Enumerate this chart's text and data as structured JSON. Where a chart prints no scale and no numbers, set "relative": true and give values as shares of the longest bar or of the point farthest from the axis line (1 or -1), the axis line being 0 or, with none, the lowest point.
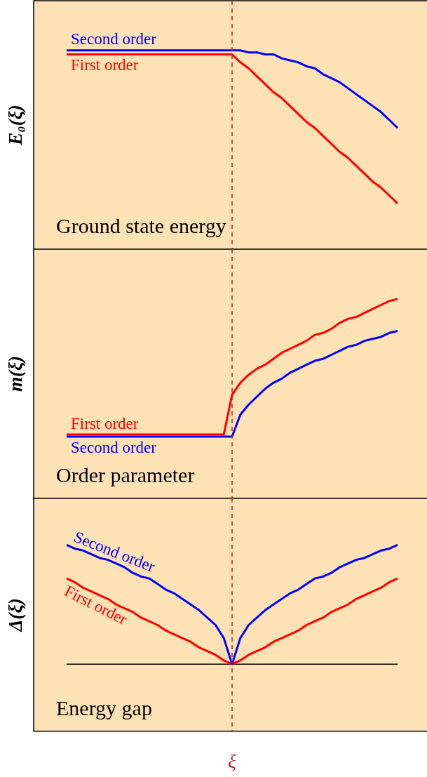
{
  "chart_data": [
    {
      "type": "line",
      "relative": true,
      "ylabel": "E₀(ξ)",
      "annotations": [
        "Ground state energy"
      ],
      "categories": [
        null,
        null,
        null,
        null,
        null,
        null,
        null,
        null,
        null,
        null,
        null,
        null,
        null,
        null,
        null,
        null,
        null,
        null,
        null,
        null,
        null,
        null,
        null,
        null,
        null,
        null,
        null,
        null,
        null,
        null,
        null,
        null,
        null,
        null,
        null,
        null,
        null,
        null,
        null,
        null,
        null
      ],
      "ref_lines": [
        {
          "axis": "x",
          "color": "#b22222",
          "line_style": "dashed"
        }
      ],
      "series": [
        {
          "name": "Second order",
          "color": "#0000ff",
          "values": [
            1,
            1,
            1,
            1,
            1,
            1,
            1,
            1,
            1,
            1,
            1,
            1,
            1,
            1,
            1,
            1,
            1,
            1,
            1,
            1,
            1,
            1.0,
            0.99,
            0.99,
            0.98,
            0.98,
            0.96,
            0.95,
            0.94,
            0.92,
            0.91,
            0.88,
            0.86,
            0.84,
            0.81,
            0.78,
            0.75,
            0.72,
            0.69,
            0.65,
            0.61
          ]
        },
        {
          "name": "First order",
          "color": "#ff0000",
          "values": [
            0.98,
            0.98,
            0.98,
            0.98,
            0.98,
            0.98,
            0.98,
            0.98,
            0.98,
            0.98,
            0.98,
            0.98,
            0.98,
            0.98,
            0.98,
            0.98,
            0.98,
            0.98,
            0.98,
            0.98,
            0.98,
            0.94,
            0.91,
            0.87,
            0.83,
            0.79,
            0.76,
            0.72,
            0.68,
            0.64,
            0.61,
            0.57,
            0.53,
            0.49,
            0.46,
            0.42,
            0.38,
            0.34,
            0.31,
            0.27,
            0.23
          ]
        }
      ]
    },
    {
      "type": "line",
      "relative": true,
      "ylabel": "m(ξ)",
      "annotations": [
        "Order parameter"
      ],
      "categories": [
        null,
        null,
        null,
        null,
        null,
        null,
        null,
        null,
        null,
        null,
        null,
        null,
        null,
        null,
        null,
        null,
        null,
        null,
        null,
        null,
        null,
        null,
        null,
        null,
        null,
        null,
        null,
        null,
        null,
        null,
        null,
        null,
        null,
        null,
        null,
        null,
        null,
        null,
        null,
        null,
        null
      ],
      "ref_lines": [
        {
          "axis": "x",
          "color": "#b22222",
          "line_style": "dashed"
        }
      ],
      "series": [
        {
          "name": "First order",
          "color": "#ff0000",
          "values": [
            0.32,
            0.32,
            0.32,
            0.32,
            0.32,
            0.32,
            0.32,
            0.32,
            0.32,
            0.32,
            0.32,
            0.32,
            0.32,
            0.32,
            0.32,
            0.32,
            0.32,
            0.32,
            0.32,
            0.32,
            0.52,
            0.58,
            0.62,
            0.65,
            0.67,
            0.7,
            0.73,
            0.75,
            0.77,
            0.79,
            0.82,
            0.83,
            0.85,
            0.88,
            0.9,
            0.91,
            0.93,
            0.95,
            0.97,
            0.99,
            1
          ]
        },
        {
          "name": "Second order",
          "color": "#0000ff",
          "values": [
            0.31,
            0.31,
            0.31,
            0.31,
            0.31,
            0.31,
            0.31,
            0.31,
            0.31,
            0.31,
            0.31,
            0.31,
            0.31,
            0.31,
            0.31,
            0.31,
            0.31,
            0.31,
            0.31,
            0.31,
            0.31,
            0.42,
            0.47,
            0.51,
            0.55,
            0.58,
            0.6,
            0.63,
            0.65,
            0.67,
            0.69,
            0.7,
            0.72,
            0.74,
            0.76,
            0.77,
            0.79,
            0.8,
            0.81,
            0.83,
            0.84
          ]
        }
      ]
    },
    {
      "type": "line",
      "relative": true,
      "ylabel": "Δ(ξ)",
      "xlabel": "ξ",
      "annotations": [
        "Energy gap"
      ],
      "categories": [
        null,
        null,
        null,
        null,
        null,
        null,
        null,
        null,
        null,
        null,
        null,
        null,
        null,
        null,
        null,
        null,
        null,
        null,
        null,
        null,
        null,
        null,
        null,
        null,
        null,
        null,
        null,
        null,
        null,
        null,
        null,
        null,
        null,
        null,
        null,
        null,
        null,
        null,
        null,
        null,
        null
      ],
      "ref_lines": [
        {
          "axis": "x",
          "color": "#b22222",
          "line_style": "dashed"
        }
      ],
      "series": [
        {
          "name": "Second order",
          "color": "#0000ff",
          "values": [
            1.0,
            0.98,
            0.97,
            0.95,
            0.93,
            0.92,
            0.9,
            0.88,
            0.85,
            0.83,
            0.82,
            0.79,
            0.76,
            0.74,
            0.71,
            0.68,
            0.65,
            0.61,
            0.57,
            0.5,
            0.36,
            0.5,
            0.57,
            0.61,
            0.65,
            0.68,
            0.71,
            0.74,
            0.76,
            0.79,
            0.82,
            0.83,
            0.85,
            0.88,
            0.9,
            0.92,
            0.93,
            0.95,
            0.97,
            0.98,
            1.0
          ]
        },
        {
          "name": "First order",
          "color": "#ff0000",
          "values": [
            0.82,
            0.8,
            0.77,
            0.75,
            0.73,
            0.71,
            0.68,
            0.66,
            0.64,
            0.61,
            0.59,
            0.57,
            0.54,
            0.52,
            0.5,
            0.48,
            0.45,
            0.43,
            0.41,
            0.38,
            0.36,
            0.38,
            0.41,
            0.43,
            0.45,
            0.48,
            0.5,
            0.52,
            0.54,
            0.57,
            0.59,
            0.61,
            0.64,
            0.66,
            0.68,
            0.71,
            0.73,
            0.75,
            0.77,
            0.8,
            0.82
          ]
        },
        {
          "color": "#000000",
          "values": [
            0.36,
            0.36,
            0.36,
            0.36,
            0.36,
            0.36,
            0.36,
            0.36,
            0.36,
            0.36,
            0.36,
            0.36,
            0.36,
            0.36,
            0.36,
            0.36,
            0.36,
            0.36,
            0.36,
            0.36,
            0.36,
            0.36,
            0.36,
            0.36,
            0.36,
            0.36,
            0.36,
            0.36,
            0.36,
            0.36,
            0.36,
            0.36,
            0.36,
            0.36,
            0.36,
            0.36,
            0.36,
            0.36,
            0.36,
            0.36,
            0.36
          ]
        }
      ]
    }
  ]
}
